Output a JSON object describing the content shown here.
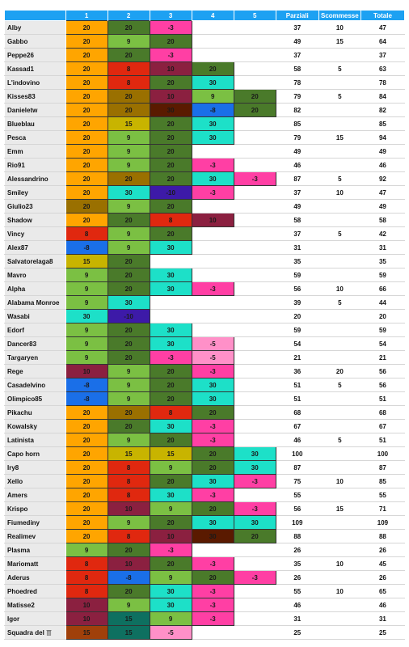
{
  "headers": [
    "",
    "1",
    "2",
    "3",
    "4",
    "5",
    "Parziali",
    "Scommesse",
    "Totale"
  ],
  "palette": {
    "20": "#ffa500",
    "15": "#c8b400",
    "10": "#8b2040",
    "9": "#7bc043",
    "8": "#e0280f",
    "-3": "#ff3fa4",
    "-5": "#ff90c8",
    "-8": "#1a6fe8",
    "-10": "#3d1aa8",
    "30": "#1de0c8",
    "r2_20": "#4a7a2a",
    "r2_15": "#b8b400",
    "r2_10": "#8b2040",
    "r2_9": "#7bc043",
    "r2_8": "#e0280f",
    "r2_-8": "#1a6fe8",
    "r2_-10": "#3d1aa8",
    "r2_30": "#1de0c8",
    "r3_20": "#4a7a2a",
    "r3_30": "#1de0c8",
    "r3_15": "#c8b400",
    "r3_10": "#8b2040",
    "r3_9": "#7bc043",
    "r3_8": "#e0280f",
    "r3_-3": "#ff3fa4",
    "r3_-5": "#ff90c8",
    "r3_-10": "#3d1aa8",
    "r4_20": "#4a7a2a",
    "r4_30": "#1de0c8",
    "r4_10": "#8b2040",
    "r4_9": "#7bc043",
    "r4_-3": "#ff3fa4",
    "r4_-5": "#ff90c8",
    "r4_-8": "#1a6fe8",
    "r5_20": "#4a7a2a",
    "r5_30": "#1de0c8",
    "r5_-3": "#ff3fa4",
    "brown20": "#9a7000",
    "darkbrown": "#5a1a00",
    "darkred": "#8b1a1a",
    "teal": "#0e7060"
  },
  "rows": [
    {
      "name": "Alby",
      "r": [
        [
          "20",
          "#ffa500"
        ],
        [
          "20",
          "#4a7a2a"
        ],
        [
          "-3",
          "#ff3fa4"
        ],
        [
          "",
          ""
        ],
        [
          "",
          ""
        ]
      ],
      "p": "37",
      "s": "10",
      "t": "47"
    },
    {
      "name": "Gabbo",
      "r": [
        [
          "20",
          "#ffa500"
        ],
        [
          "9",
          "#7bc043"
        ],
        [
          "20",
          "#4a7a2a"
        ],
        [
          "",
          ""
        ],
        [
          "",
          ""
        ]
      ],
      "p": "49",
      "s": "15",
      "t": "64"
    },
    {
      "name": "Peppe26",
      "r": [
        [
          "20",
          "#ffa500"
        ],
        [
          "20",
          "#4a7a2a"
        ],
        [
          "-3",
          "#ff3fa4"
        ],
        [
          "",
          ""
        ],
        [
          "",
          ""
        ]
      ],
      "p": "37",
      "s": "",
      "t": "37"
    },
    {
      "name": "Kassad1",
      "r": [
        [
          "20",
          "#ffa500"
        ],
        [
          "8",
          "#e0280f"
        ],
        [
          "10",
          "#8b2040"
        ],
        [
          "20",
          "#4a7a2a"
        ],
        [
          "",
          ""
        ]
      ],
      "p": "58",
      "s": "5",
      "t": "63"
    },
    {
      "name": "L'indovino",
      "r": [
        [
          "20",
          "#ffa500"
        ],
        [
          "8",
          "#e0280f"
        ],
        [
          "20",
          "#4a7a2a"
        ],
        [
          "30",
          "#1de0c8"
        ],
        [
          "",
          ""
        ]
      ],
      "p": "78",
      "s": "",
      "t": "78"
    },
    {
      "name": "Kisses83",
      "r": [
        [
          "20",
          "#ffa500"
        ],
        [
          "20",
          "#9a7000"
        ],
        [
          "10",
          "#8b2040"
        ],
        [
          "9",
          "#7bc043"
        ],
        [
          "20",
          "#4a7a2a"
        ]
      ],
      "p": "79",
      "s": "5",
      "t": "84"
    },
    {
      "name": "Danieletw",
      "r": [
        [
          "20",
          "#ffa500"
        ],
        [
          "20",
          "#9a7000"
        ],
        [
          "30",
          "#5a1a00"
        ],
        [
          "-8",
          "#1a6fe8"
        ],
        [
          "20",
          "#4a7a2a"
        ]
      ],
      "p": "82",
      "s": "",
      "t": "82"
    },
    {
      "name": "Blueblau",
      "r": [
        [
          "20",
          "#ffa500"
        ],
        [
          "15",
          "#c8b400"
        ],
        [
          "20",
          "#4a7a2a"
        ],
        [
          "30",
          "#1de0c8"
        ],
        [
          "",
          ""
        ]
      ],
      "p": "85",
      "s": "",
      "t": "85"
    },
    {
      "name": "Pesca",
      "r": [
        [
          "20",
          "#ffa500"
        ],
        [
          "9",
          "#7bc043"
        ],
        [
          "20",
          "#4a7a2a"
        ],
        [
          "30",
          "#1de0c8"
        ],
        [
          "",
          ""
        ]
      ],
      "p": "79",
      "s": "15",
      "t": "94"
    },
    {
      "name": "Emm",
      "r": [
        [
          "20",
          "#ffa500"
        ],
        [
          "9",
          "#7bc043"
        ],
        [
          "20",
          "#4a7a2a"
        ],
        [
          "",
          ""
        ],
        [
          "",
          ""
        ]
      ],
      "p": "49",
      "s": "",
      "t": "49"
    },
    {
      "name": "Rio91",
      "r": [
        [
          "20",
          "#ffa500"
        ],
        [
          "9",
          "#7bc043"
        ],
        [
          "20",
          "#4a7a2a"
        ],
        [
          "-3",
          "#ff3fa4"
        ],
        [
          "",
          ""
        ]
      ],
      "p": "46",
      "s": "",
      "t": "46"
    },
    {
      "name": "Alessandrino",
      "r": [
        [
          "20",
          "#ffa500"
        ],
        [
          "20",
          "#9a7000"
        ],
        [
          "20",
          "#4a7a2a"
        ],
        [
          "30",
          "#1de0c8"
        ],
        [
          "-3",
          "#ff3fa4"
        ]
      ],
      "p": "87",
      "s": "5",
      "t": "92"
    },
    {
      "name": "Smiley",
      "r": [
        [
          "20",
          "#ffa500"
        ],
        [
          "30",
          "#1de0c8"
        ],
        [
          "-10",
          "#3d1aa8"
        ],
        [
          "-3",
          "#ff3fa4"
        ],
        [
          "",
          ""
        ]
      ],
      "p": "37",
      "s": "10",
      "t": "47"
    },
    {
      "name": "Giulio23",
      "r": [
        [
          "20",
          "#9a7000"
        ],
        [
          "9",
          "#7bc043"
        ],
        [
          "20",
          "#4a7a2a"
        ],
        [
          "",
          ""
        ],
        [
          "",
          ""
        ]
      ],
      "p": "49",
      "s": "",
      "t": "49"
    },
    {
      "name": "Shadow",
      "r": [
        [
          "20",
          "#ffa500"
        ],
        [
          "20",
          "#4a7a2a"
        ],
        [
          "8",
          "#e0280f"
        ],
        [
          "10",
          "#8b2040"
        ],
        [
          "",
          ""
        ]
      ],
      "p": "58",
      "s": "",
      "t": "58"
    },
    {
      "name": "Vincy",
      "r": [
        [
          "8",
          "#e0280f"
        ],
        [
          "9",
          "#7bc043"
        ],
        [
          "20",
          "#4a7a2a"
        ],
        [
          "",
          ""
        ],
        [
          "",
          ""
        ]
      ],
      "p": "37",
      "s": "5",
      "t": "42"
    },
    {
      "name": "Alex87",
      "r": [
        [
          "-8",
          "#1a6fe8"
        ],
        [
          "9",
          "#7bc043"
        ],
        [
          "30",
          "#1de0c8"
        ],
        [
          "",
          ""
        ],
        [
          "",
          ""
        ]
      ],
      "p": "31",
      "s": "",
      "t": "31"
    },
    {
      "name": "Salvatorelaga8",
      "r": [
        [
          "15",
          "#c8b400"
        ],
        [
          "20",
          "#4a7a2a"
        ],
        [
          "",
          ""
        ],
        [
          "",
          ""
        ],
        [
          "",
          ""
        ]
      ],
      "p": "35",
      "s": "",
      "t": "35"
    },
    {
      "name": "Mavro",
      "r": [
        [
          "9",
          "#7bc043"
        ],
        [
          "20",
          "#4a7a2a"
        ],
        [
          "30",
          "#1de0c8"
        ],
        [
          "",
          ""
        ],
        [
          "",
          ""
        ]
      ],
      "p": "59",
      "s": "",
      "t": "59"
    },
    {
      "name": "Alpha",
      "r": [
        [
          "9",
          "#7bc043"
        ],
        [
          "20",
          "#4a7a2a"
        ],
        [
          "30",
          "#1de0c8"
        ],
        [
          "-3",
          "#ff3fa4"
        ],
        [
          "",
          ""
        ]
      ],
      "p": "56",
      "s": "10",
      "t": "66"
    },
    {
      "name": "Alabama Monroe",
      "r": [
        [
          "9",
          "#7bc043"
        ],
        [
          "30",
          "#1de0c8"
        ],
        [
          "",
          ""
        ],
        [
          "",
          ""
        ],
        [
          "",
          ""
        ]
      ],
      "p": "39",
      "s": "5",
      "t": "44"
    },
    {
      "name": "Wasabi",
      "r": [
        [
          "30",
          "#1de0c8"
        ],
        [
          "-10",
          "#3d1aa8"
        ],
        [
          "",
          ""
        ],
        [
          "",
          ""
        ],
        [
          "",
          ""
        ]
      ],
      "p": "20",
      "s": "",
      "t": "20"
    },
    {
      "name": "Edorf",
      "r": [
        [
          "9",
          "#7bc043"
        ],
        [
          "20",
          "#4a7a2a"
        ],
        [
          "30",
          "#1de0c8"
        ],
        [
          "",
          ""
        ],
        [
          "",
          ""
        ]
      ],
      "p": "59",
      "s": "",
      "t": "59"
    },
    {
      "name": "Dancer83",
      "r": [
        [
          "9",
          "#7bc043"
        ],
        [
          "20",
          "#4a7a2a"
        ],
        [
          "30",
          "#1de0c8"
        ],
        [
          "-5",
          "#ff90c8"
        ],
        [
          "",
          ""
        ]
      ],
      "p": "54",
      "s": "",
      "t": "54"
    },
    {
      "name": "Targaryen",
      "r": [
        [
          "9",
          "#7bc043"
        ],
        [
          "20",
          "#4a7a2a"
        ],
        [
          "-3",
          "#ff3fa4"
        ],
        [
          "-5",
          "#ff90c8"
        ],
        [
          "",
          ""
        ]
      ],
      "p": "21",
      "s": "",
      "t": "21"
    },
    {
      "name": "Rege",
      "r": [
        [
          "10",
          "#8b2040"
        ],
        [
          "9",
          "#7bc043"
        ],
        [
          "20",
          "#4a7a2a"
        ],
        [
          "-3",
          "#ff3fa4"
        ],
        [
          "",
          ""
        ]
      ],
      "p": "36",
      "s": "20",
      "t": "56"
    },
    {
      "name": "Casadelvino",
      "r": [
        [
          "-8",
          "#1a6fe8"
        ],
        [
          "9",
          "#7bc043"
        ],
        [
          "20",
          "#4a7a2a"
        ],
        [
          "30",
          "#1de0c8"
        ],
        [
          "",
          ""
        ]
      ],
      "p": "51",
      "s": "5",
      "t": "56"
    },
    {
      "name": "Olimpico85",
      "r": [
        [
          "-8",
          "#1a6fe8"
        ],
        [
          "9",
          "#7bc043"
        ],
        [
          "20",
          "#4a7a2a"
        ],
        [
          "30",
          "#1de0c8"
        ],
        [
          "",
          ""
        ]
      ],
      "p": "51",
      "s": "",
      "t": "51"
    },
    {
      "name": "Pikachu",
      "r": [
        [
          "20",
          "#ffa500"
        ],
        [
          "20",
          "#9a7000"
        ],
        [
          "8",
          "#e0280f"
        ],
        [
          "20",
          "#4a7a2a"
        ],
        [
          "",
          ""
        ]
      ],
      "p": "68",
      "s": "",
      "t": "68"
    },
    {
      "name": "Kowalsky",
      "r": [
        [
          "20",
          "#ffa500"
        ],
        [
          "20",
          "#4a7a2a"
        ],
        [
          "30",
          "#1de0c8"
        ],
        [
          "-3",
          "#ff3fa4"
        ],
        [
          "",
          ""
        ]
      ],
      "p": "67",
      "s": "",
      "t": "67"
    },
    {
      "name": "Latinista",
      "r": [
        [
          "20",
          "#ffa500"
        ],
        [
          "9",
          "#7bc043"
        ],
        [
          "20",
          "#4a7a2a"
        ],
        [
          "-3",
          "#ff3fa4"
        ],
        [
          "",
          ""
        ]
      ],
      "p": "46",
      "s": "5",
      "t": "51"
    },
    {
      "name": "Capo horn",
      "r": [
        [
          "20",
          "#ffa500"
        ],
        [
          "15",
          "#c8b400"
        ],
        [
          "15",
          "#c8b400"
        ],
        [
          "20",
          "#4a7a2a"
        ],
        [
          "30",
          "#1de0c8"
        ]
      ],
      "p": "100",
      "s": "",
      "t": "100"
    },
    {
      "name": "Iry8",
      "r": [
        [
          "20",
          "#ffa500"
        ],
        [
          "8",
          "#e0280f"
        ],
        [
          "9",
          "#7bc043"
        ],
        [
          "20",
          "#4a7a2a"
        ],
        [
          "30",
          "#1de0c8"
        ]
      ],
      "p": "87",
      "s": "",
      "t": "87"
    },
    {
      "name": "Xello",
      "r": [
        [
          "20",
          "#ffa500"
        ],
        [
          "8",
          "#e0280f"
        ],
        [
          "20",
          "#4a7a2a"
        ],
        [
          "30",
          "#1de0c8"
        ],
        [
          "-3",
          "#ff3fa4"
        ]
      ],
      "p": "75",
      "s": "10",
      "t": "85"
    },
    {
      "name": "Amers",
      "r": [
        [
          "20",
          "#ffa500"
        ],
        [
          "8",
          "#e0280f"
        ],
        [
          "30",
          "#1de0c8"
        ],
        [
          "-3",
          "#ff3fa4"
        ],
        [
          "",
          ""
        ]
      ],
      "p": "55",
      "s": "",
      "t": "55"
    },
    {
      "name": "Krispo",
      "r": [
        [
          "20",
          "#ffa500"
        ],
        [
          "10",
          "#8b2040"
        ],
        [
          "9",
          "#7bc043"
        ],
        [
          "20",
          "#4a7a2a"
        ],
        [
          "-3",
          "#ff3fa4"
        ]
      ],
      "p": "56",
      "s": "15",
      "t": "71"
    },
    {
      "name": "Fiumediny",
      "r": [
        [
          "20",
          "#ffa500"
        ],
        [
          "9",
          "#7bc043"
        ],
        [
          "20",
          "#4a7a2a"
        ],
        [
          "30",
          "#1de0c8"
        ],
        [
          "30",
          "#1de0c8"
        ]
      ],
      "p": "109",
      "s": "",
      "t": "109"
    },
    {
      "name": "Realimev",
      "r": [
        [
          "20",
          "#ffa500"
        ],
        [
          "8",
          "#e0280f"
        ],
        [
          "10",
          "#8b2040"
        ],
        [
          "30",
          "#5a1a00"
        ],
        [
          "20",
          "#4a7a2a"
        ]
      ],
      "p": "88",
      "s": "",
      "t": "88"
    },
    {
      "name": "Plasma",
      "r": [
        [
          "9",
          "#7bc043"
        ],
        [
          "20",
          "#4a7a2a"
        ],
        [
          "-3",
          "#ff3fa4"
        ],
        [
          "",
          ""
        ],
        [
          "",
          ""
        ]
      ],
      "p": "26",
      "s": "",
      "t": "26"
    },
    {
      "name": "Mariomatt",
      "r": [
        [
          "8",
          "#e0280f"
        ],
        [
          "10",
          "#8b2040"
        ],
        [
          "20",
          "#4a7a2a"
        ],
        [
          "-3",
          "#ff3fa4"
        ],
        [
          "",
          ""
        ]
      ],
      "p": "35",
      "s": "10",
      "t": "45"
    },
    {
      "name": "Aderus",
      "r": [
        [
          "8",
          "#e0280f"
        ],
        [
          "-8",
          "#1a6fe8"
        ],
        [
          "9",
          "#7bc043"
        ],
        [
          "20",
          "#4a7a2a"
        ],
        [
          "-3",
          "#ff3fa4"
        ]
      ],
      "p": "26",
      "s": "",
      "t": "26"
    },
    {
      "name": "Phoedred",
      "r": [
        [
          "8",
          "#e0280f"
        ],
        [
          "20",
          "#4a7a2a"
        ],
        [
          "30",
          "#1de0c8"
        ],
        [
          "-3",
          "#ff3fa4"
        ],
        [
          "",
          ""
        ]
      ],
      "p": "55",
      "s": "10",
      "t": "65"
    },
    {
      "name": "Matisse2",
      "r": [
        [
          "10",
          "#8b2040"
        ],
        [
          "9",
          "#7bc043"
        ],
        [
          "30",
          "#1de0c8"
        ],
        [
          "-3",
          "#ff3fa4"
        ],
        [
          "",
          ""
        ]
      ],
      "p": "46",
      "s": "",
      "t": "46"
    },
    {
      "name": "Igor",
      "r": [
        [
          "10",
          "#8b2040"
        ],
        [
          "15",
          "#0e7060"
        ],
        [
          "9",
          "#7bc043"
        ],
        [
          "-3",
          "#ff3fa4"
        ],
        [
          "",
          ""
        ]
      ],
      "p": "31",
      "s": "",
      "t": "31"
    },
    {
      "name": "Squadra del",
      "icon": "trash-icon",
      "r": [
        [
          "15",
          "#a0400a"
        ],
        [
          "15",
          "#0e7060"
        ],
        [
          "-5",
          "#ff90c8"
        ],
        [
          "",
          ""
        ],
        [
          "",
          ""
        ]
      ],
      "p": "25",
      "s": "",
      "t": "25"
    }
  ]
}
